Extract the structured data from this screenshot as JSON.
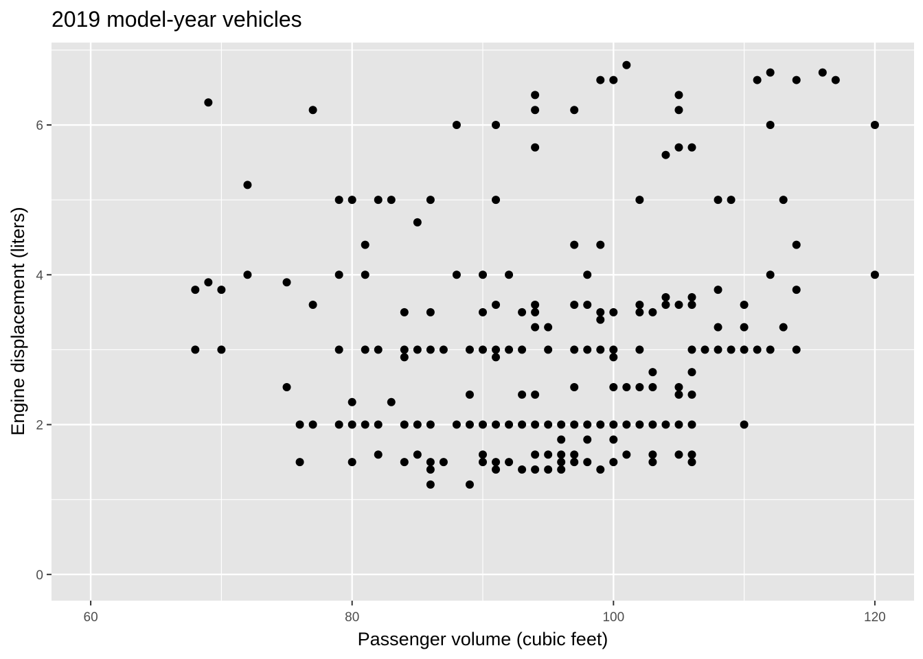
{
  "chart_data": {
    "type": "scatter",
    "title": "2019 model-year vehicles",
    "xlabel": "Passenger volume (cubic feet)",
    "ylabel": "Engine displacement (liters)",
    "xlim": [
      57,
      123
    ],
    "ylim": [
      -0.35,
      7.1
    ],
    "x_ticks": [
      60,
      80,
      100,
      120
    ],
    "y_ticks": [
      0,
      2,
      4,
      6
    ],
    "x_tick_labels": [
      "60",
      "80",
      "100",
      "120"
    ],
    "y_tick_labels": [
      "0",
      "2",
      "4",
      "6"
    ],
    "grid": true,
    "legend": "none",
    "colors": {
      "panel_background": "#e5e5e5",
      "grid_major": "#ffffff",
      "point": "#000000",
      "tick": "#333333"
    },
    "points": [
      [
        69,
        6.3
      ],
      [
        77,
        6.2
      ],
      [
        72,
        5.2
      ],
      [
        68,
        3.8
      ],
      [
        69,
        3.9
      ],
      [
        70,
        3.8
      ],
      [
        72,
        4.0
      ],
      [
        75,
        3.9
      ],
      [
        77,
        3.6
      ],
      [
        68,
        3.0
      ],
      [
        70,
        3.0
      ],
      [
        75,
        2.5
      ],
      [
        76,
        2.0
      ],
      [
        77,
        2.0
      ],
      [
        76,
        1.5
      ],
      [
        79,
        5.0
      ],
      [
        80,
        5.0
      ],
      [
        82,
        5.0
      ],
      [
        83,
        5.0
      ],
      [
        86,
        5.0
      ],
      [
        85,
        4.7
      ],
      [
        81,
        4.4
      ],
      [
        79,
        4.0
      ],
      [
        81,
        4.0
      ],
      [
        79,
        3.0
      ],
      [
        81,
        3.0
      ],
      [
        82,
        3.0
      ],
      [
        80,
        2.3
      ],
      [
        83,
        2.3
      ],
      [
        79,
        2.0
      ],
      [
        80,
        2.0
      ],
      [
        81,
        2.0
      ],
      [
        82,
        2.0
      ],
      [
        80,
        1.5
      ],
      [
        82,
        1.6
      ],
      [
        84,
        3.5
      ],
      [
        84,
        3.0
      ],
      [
        84,
        2.9
      ],
      [
        85,
        3.0
      ],
      [
        86,
        3.5
      ],
      [
        86,
        3.0
      ],
      [
        87,
        3.0
      ],
      [
        84,
        2.0
      ],
      [
        85,
        2.0
      ],
      [
        86,
        2.0
      ],
      [
        84,
        1.5
      ],
      [
        85,
        1.6
      ],
      [
        86,
        1.5
      ],
      [
        86,
        1.4
      ],
      [
        86,
        1.2
      ],
      [
        87,
        1.5
      ],
      [
        88,
        6.0
      ],
      [
        88,
        4.0
      ],
      [
        88,
        2.0
      ],
      [
        89,
        3.0
      ],
      [
        89,
        2.4
      ],
      [
        89,
        2.0
      ],
      [
        89,
        1.2
      ],
      [
        90,
        4.0
      ],
      [
        90,
        3.5
      ],
      [
        90,
        3.0
      ],
      [
        90,
        2.0
      ],
      [
        90,
        1.6
      ],
      [
        90,
        1.5
      ],
      [
        91,
        6.0
      ],
      [
        91,
        5.0
      ],
      [
        91,
        3.6
      ],
      [
        91,
        3.0
      ],
      [
        91,
        2.9
      ],
      [
        91,
        2.0
      ],
      [
        91,
        1.5
      ],
      [
        91,
        1.4
      ],
      [
        92,
        4.0
      ],
      [
        92,
        3.0
      ],
      [
        92,
        2.0
      ],
      [
        92,
        1.5
      ],
      [
        93,
        3.5
      ],
      [
        93,
        3.0
      ],
      [
        93,
        2.4
      ],
      [
        93,
        2.0
      ],
      [
        93,
        1.4
      ],
      [
        94,
        6.4
      ],
      [
        94,
        6.2
      ],
      [
        94,
        5.7
      ],
      [
        94,
        3.6
      ],
      [
        94,
        3.5
      ],
      [
        94,
        3.3
      ],
      [
        94,
        2.4
      ],
      [
        94,
        2.0
      ],
      [
        94,
        1.6
      ],
      [
        94,
        1.4
      ],
      [
        95,
        3.3
      ],
      [
        95,
        3.0
      ],
      [
        95,
        2.0
      ],
      [
        95,
        1.6
      ],
      [
        95,
        1.4
      ],
      [
        96,
        2.0
      ],
      [
        96,
        1.8
      ],
      [
        96,
        1.6
      ],
      [
        96,
        1.5
      ],
      [
        96,
        1.4
      ],
      [
        97,
        6.2
      ],
      [
        97,
        4.4
      ],
      [
        97,
        3.6
      ],
      [
        97,
        3.0
      ],
      [
        97,
        2.5
      ],
      [
        97,
        2.0
      ],
      [
        97,
        1.6
      ],
      [
        97,
        1.5
      ],
      [
        98,
        4.0
      ],
      [
        98,
        3.6
      ],
      [
        98,
        3.0
      ],
      [
        98,
        2.0
      ],
      [
        98,
        1.8
      ],
      [
        98,
        1.5
      ],
      [
        99,
        6.6
      ],
      [
        99,
        4.4
      ],
      [
        99,
        3.5
      ],
      [
        99,
        3.4
      ],
      [
        99,
        3.0
      ],
      [
        99,
        2.0
      ],
      [
        99,
        1.4
      ],
      [
        100,
        6.6
      ],
      [
        100,
        3.5
      ],
      [
        100,
        3.0
      ],
      [
        100,
        2.9
      ],
      [
        100,
        2.5
      ],
      [
        100,
        2.0
      ],
      [
        100,
        1.8
      ],
      [
        100,
        1.5
      ],
      [
        101,
        6.8
      ],
      [
        101,
        2.5
      ],
      [
        101,
        2.0
      ],
      [
        101,
        1.6
      ],
      [
        102,
        5.0
      ],
      [
        102,
        3.6
      ],
      [
        102,
        3.5
      ],
      [
        102,
        3.0
      ],
      [
        102,
        2.5
      ],
      [
        102,
        2.0
      ],
      [
        103,
        3.5
      ],
      [
        103,
        2.7
      ],
      [
        103,
        2.5
      ],
      [
        103,
        2.0
      ],
      [
        103,
        1.6
      ],
      [
        103,
        1.5
      ],
      [
        104,
        5.6
      ],
      [
        104,
        3.7
      ],
      [
        104,
        3.6
      ],
      [
        104,
        2.0
      ],
      [
        105,
        6.4
      ],
      [
        105,
        6.2
      ],
      [
        105,
        5.7
      ],
      [
        105,
        3.6
      ],
      [
        105,
        2.5
      ],
      [
        105,
        2.4
      ],
      [
        105,
        2.0
      ],
      [
        105,
        1.6
      ],
      [
        106,
        5.7
      ],
      [
        106,
        3.7
      ],
      [
        106,
        3.6
      ],
      [
        106,
        3.0
      ],
      [
        106,
        2.7
      ],
      [
        106,
        2.4
      ],
      [
        106,
        2.0
      ],
      [
        106,
        1.6
      ],
      [
        106,
        1.5
      ],
      [
        107,
        3.0
      ],
      [
        108,
        5.0
      ],
      [
        108,
        3.8
      ],
      [
        108,
        3.3
      ],
      [
        108,
        3.0
      ],
      [
        109,
        5.0
      ],
      [
        109,
        3.0
      ],
      [
        110,
        3.6
      ],
      [
        110,
        3.3
      ],
      [
        110,
        3.0
      ],
      [
        110,
        2.0
      ],
      [
        111,
        6.6
      ],
      [
        111,
        3.0
      ],
      [
        112,
        6.7
      ],
      [
        112,
        6.0
      ],
      [
        112,
        4.0
      ],
      [
        112,
        3.0
      ],
      [
        113,
        5.0
      ],
      [
        113,
        3.3
      ],
      [
        114,
        6.6
      ],
      [
        114,
        4.4
      ],
      [
        114,
        3.8
      ],
      [
        114,
        3.0
      ],
      [
        116,
        6.7
      ],
      [
        117,
        6.6
      ],
      [
        120,
        6.0
      ],
      [
        120,
        4.0
      ]
    ]
  }
}
